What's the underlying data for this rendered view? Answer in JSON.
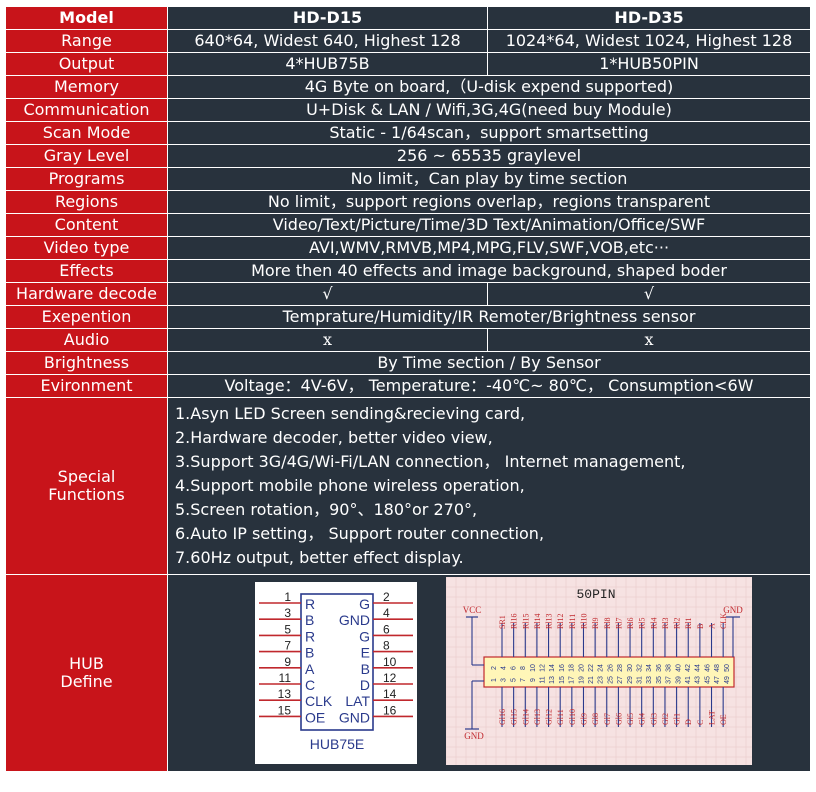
{
  "header": {
    "model": "Model",
    "col1": "HD-D15",
    "col2": "HD-D35"
  },
  "rows": {
    "range": {
      "label": "Range",
      "v1": "640*64, Widest 640, Highest 128",
      "v2": "1024*64, Widest 1024, Highest 128"
    },
    "output": {
      "label": "Output",
      "v1": "4*HUB75B",
      "v2": "1*HUB50PIN"
    },
    "memory": {
      "label": "Memory",
      "value": "4G Byte on board,（U-disk expend supported)"
    },
    "communication": {
      "label": "Communication",
      "value": "U+Disk & LAN / Wifi,3G,4G(need buy Module)"
    },
    "scan_mode": {
      "label": "Scan Mode",
      "value": "Static - 1/64scan，support smartsetting"
    },
    "gray_level": {
      "label": "Gray Level",
      "value": "256 ~ 65535 graylevel"
    },
    "programs": {
      "label": "Programs",
      "value": "No limit，Can play by time section"
    },
    "regions": {
      "label": "Regions",
      "value": "No limit，support regions overlap，regions transparent"
    },
    "content": {
      "label": "Content",
      "value": "Video/Text/Picture/Time/3D Text/Animation/Office/SWF"
    },
    "video_type": {
      "label": "Video type",
      "value": "AVI,WMV,RMVB,MP4,MPG,FLV,SWF,VOB,etc···"
    },
    "effects": {
      "label": "Effects",
      "value": "More then 40 effects and image background, shaped boder"
    },
    "hardware_decode": {
      "label": "Hardware decode",
      "v1": "√",
      "v2": "√"
    },
    "exepention": {
      "label": "Exepention",
      "value": "Temprature/Humidity/IR Remoter/Brightness sensor"
    },
    "audio": {
      "label": "Audio",
      "v1": "x",
      "v2": "x"
    },
    "brightness": {
      "label": "Brightness",
      "value": "By Time section / By Sensor"
    },
    "evironment": {
      "label": "Evironment",
      "value": "Voltage：4V-6V， Temperature：-40℃~ 80℃， Consumption<6W"
    }
  },
  "special": {
    "label_line1": "Special",
    "label_line2": "Functions",
    "items": [
      "1.Asyn LED Screen sending&recieving card,",
      "2.Hardware decoder, better video view,",
      "3.Support 3G/4G/Wi-Fi/LAN connection， Internet management,",
      "4.Support mobile phone wireless operation,",
      "5.Screen rotation，90°、180°or 270°,",
      "6.Auto IP setting， Support router connection,",
      "7.60Hz output, better effect display."
    ]
  },
  "hub": {
    "label_line1": "HUB",
    "label_line2": "Define",
    "hub75": {
      "name": "HUB75E",
      "left_nums": [
        "1",
        "3",
        "5",
        "7",
        "9",
        "11",
        "13",
        "15"
      ],
      "right_nums": [
        "2",
        "4",
        "6",
        "8",
        "10",
        "12",
        "14",
        "16"
      ],
      "left_sigs": [
        "R",
        "B",
        "R",
        "B",
        "A",
        "C",
        "CLK",
        "OE"
      ],
      "right_sigs": [
        "G",
        "GND",
        "G",
        "E",
        "B",
        "D",
        "LAT",
        "GND"
      ]
    },
    "hub50": {
      "title": "50PIN",
      "vcc": "VCC",
      "gnd": "GND",
      "top_labels": [
        "SR1",
        "Rl16",
        "Rl15",
        "Rl14",
        "Rl13",
        "Rl12",
        "Rl11",
        "Rl10",
        "Rl9",
        "Rl8",
        "Rl7",
        "Rl6",
        "Rl5",
        "Rl4",
        "Rl3",
        "Rl2",
        "Rl1",
        "B",
        "A",
        "CLK"
      ],
      "bottom_labels": [
        "Gl16",
        "Gl15",
        "Gl14",
        "Gl13",
        "Gl12",
        "Gl11",
        "Gl10",
        "Gl9",
        "Gl8",
        "Gl7",
        "Gl6",
        "Gl5",
        "Gl4",
        "Gl3",
        "Gl2",
        "Gl1",
        "D",
        "C",
        "LAT",
        "OE"
      ],
      "odd_nums": [
        "1",
        "3",
        "5",
        "7",
        "9",
        "11",
        "13",
        "15",
        "17",
        "19",
        "21",
        "23",
        "25",
        "27",
        "29",
        "31",
        "33",
        "35",
        "37",
        "39",
        "41",
        "43",
        "45",
        "47",
        "49"
      ],
      "even_nums": [
        "2",
        "4",
        "6",
        "8",
        "10",
        "12",
        "14",
        "16",
        "18",
        "20",
        "22",
        "24",
        "26",
        "28",
        "30",
        "32",
        "34",
        "36",
        "38",
        "40",
        "42",
        "44",
        "46",
        "48",
        "50"
      ]
    }
  }
}
